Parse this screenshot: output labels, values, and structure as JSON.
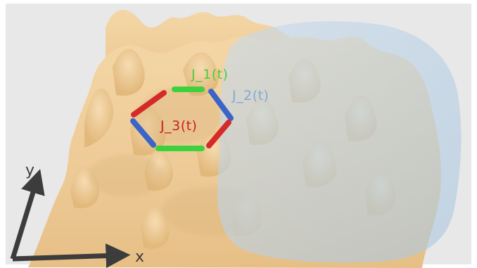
{
  "labels": {
    "j1": "J_1(t)",
    "j2": "J_2(t)",
    "j3": "J_3(t)",
    "axis_x": "x",
    "axis_y": "y"
  },
  "colors": {
    "background": "#e8e8e8",
    "surface": "#eecb97",
    "surface_shade": "#d9b27a",
    "blob": "#b9d3e6",
    "j1": "#3ed13e",
    "j2": "#3b64c8",
    "j3": "#d42a2a",
    "j1_text": "#4ecb3a",
    "j2_text": "#7fa9d6",
    "j3_text": "#cc1f1f",
    "axis": "#3c3c3c"
  }
}
